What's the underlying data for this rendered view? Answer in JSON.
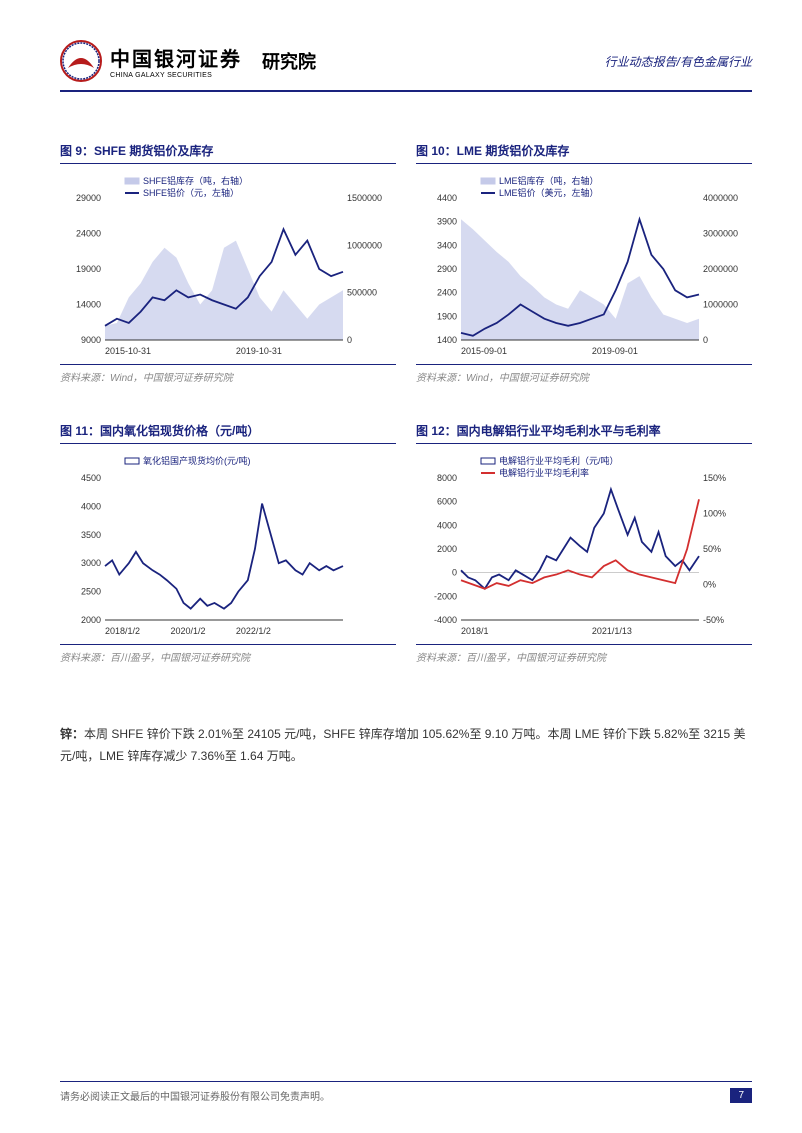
{
  "header": {
    "company_cn": "中国银河证券",
    "company_en": "CHINA GALAXY SECURITIES",
    "division": "研究院",
    "right_text": "行业动态报告/有色金属行业"
  },
  "charts": {
    "c9": {
      "title": "图 9：SHFE 期货铝价及库存",
      "legend1": "SHFE铝库存（吨，右轴）",
      "legend2": "SHFE铝价（元，左轴）",
      "y1_ticks": [
        "9000",
        "14000",
        "19000",
        "24000",
        "29000"
      ],
      "y2_ticks": [
        "0",
        "500000",
        "1000000",
        "1500000"
      ],
      "x_ticks": [
        "2015-10-31",
        "2019-10-31"
      ],
      "source": "资料来源：Wind，中国银河证券研究院",
      "area_color": "#c5cae9",
      "line_color": "#1a237e",
      "area": [
        [
          0,
          0.1
        ],
        [
          0.05,
          0.12
        ],
        [
          0.1,
          0.3
        ],
        [
          0.15,
          0.4
        ],
        [
          0.2,
          0.55
        ],
        [
          0.25,
          0.65
        ],
        [
          0.3,
          0.58
        ],
        [
          0.35,
          0.4
        ],
        [
          0.4,
          0.25
        ],
        [
          0.45,
          0.35
        ],
        [
          0.5,
          0.65
        ],
        [
          0.55,
          0.7
        ],
        [
          0.6,
          0.5
        ],
        [
          0.65,
          0.3
        ],
        [
          0.7,
          0.2
        ],
        [
          0.75,
          0.35
        ],
        [
          0.8,
          0.25
        ],
        [
          0.85,
          0.15
        ],
        [
          0.9,
          0.25
        ],
        [
          0.95,
          0.3
        ],
        [
          1,
          0.35
        ]
      ],
      "line": [
        [
          0,
          0.1
        ],
        [
          0.05,
          0.15
        ],
        [
          0.1,
          0.12
        ],
        [
          0.15,
          0.2
        ],
        [
          0.2,
          0.3
        ],
        [
          0.25,
          0.28
        ],
        [
          0.3,
          0.35
        ],
        [
          0.35,
          0.3
        ],
        [
          0.4,
          0.32
        ],
        [
          0.45,
          0.28
        ],
        [
          0.5,
          0.25
        ],
        [
          0.55,
          0.22
        ],
        [
          0.6,
          0.3
        ],
        [
          0.65,
          0.45
        ],
        [
          0.7,
          0.55
        ],
        [
          0.75,
          0.78
        ],
        [
          0.8,
          0.6
        ],
        [
          0.85,
          0.7
        ],
        [
          0.9,
          0.5
        ],
        [
          0.95,
          0.45
        ],
        [
          1,
          0.48
        ]
      ]
    },
    "c10": {
      "title": "图 10：LME 期货铝价及库存",
      "legend1": "LME铝库存（吨，右轴）",
      "legend2": "LME铝价（美元，左轴）",
      "y1_ticks": [
        "1400",
        "1900",
        "2400",
        "2900",
        "3400",
        "3900",
        "4400"
      ],
      "y2_ticks": [
        "0",
        "1000000",
        "2000000",
        "3000000",
        "4000000"
      ],
      "x_ticks": [
        "2015-09-01",
        "2019-09-01"
      ],
      "source": "资料来源：Wind，中国银河证券研究院",
      "area_color": "#c5cae9",
      "line_color": "#1a237e",
      "area": [
        [
          0,
          0.85
        ],
        [
          0.05,
          0.78
        ],
        [
          0.1,
          0.7
        ],
        [
          0.15,
          0.62
        ],
        [
          0.2,
          0.55
        ],
        [
          0.25,
          0.45
        ],
        [
          0.3,
          0.38
        ],
        [
          0.35,
          0.3
        ],
        [
          0.4,
          0.25
        ],
        [
          0.45,
          0.22
        ],
        [
          0.5,
          0.35
        ],
        [
          0.55,
          0.3
        ],
        [
          0.6,
          0.25
        ],
        [
          0.65,
          0.15
        ],
        [
          0.7,
          0.4
        ],
        [
          0.75,
          0.45
        ],
        [
          0.8,
          0.3
        ],
        [
          0.85,
          0.18
        ],
        [
          0.9,
          0.15
        ],
        [
          0.95,
          0.12
        ],
        [
          1,
          0.15
        ]
      ],
      "line": [
        [
          0,
          0.05
        ],
        [
          0.05,
          0.03
        ],
        [
          0.1,
          0.08
        ],
        [
          0.15,
          0.12
        ],
        [
          0.2,
          0.18
        ],
        [
          0.25,
          0.25
        ],
        [
          0.3,
          0.2
        ],
        [
          0.35,
          0.15
        ],
        [
          0.4,
          0.12
        ],
        [
          0.45,
          0.1
        ],
        [
          0.5,
          0.12
        ],
        [
          0.55,
          0.15
        ],
        [
          0.6,
          0.18
        ],
        [
          0.65,
          0.35
        ],
        [
          0.7,
          0.55
        ],
        [
          0.75,
          0.85
        ],
        [
          0.8,
          0.6
        ],
        [
          0.85,
          0.5
        ],
        [
          0.9,
          0.35
        ],
        [
          0.95,
          0.3
        ],
        [
          1,
          0.32
        ]
      ]
    },
    "c11": {
      "title": "图 11：国内氧化铝现货价格（元/吨）",
      "legend1": "氧化铝国产现货均价(元/吨)",
      "y1_ticks": [
        "2000",
        "2500",
        "3000",
        "3500",
        "4000",
        "4500"
      ],
      "x_ticks": [
        "2018/1/2",
        "2020/1/2",
        "2022/1/2"
      ],
      "source": "资料来源：百川盈孚，中国银河证券研究院",
      "line_color": "#1a237e",
      "line": [
        [
          0,
          0.38
        ],
        [
          0.03,
          0.42
        ],
        [
          0.06,
          0.32
        ],
        [
          0.1,
          0.4
        ],
        [
          0.13,
          0.48
        ],
        [
          0.16,
          0.4
        ],
        [
          0.2,
          0.35
        ],
        [
          0.23,
          0.32
        ],
        [
          0.26,
          0.28
        ],
        [
          0.3,
          0.22
        ],
        [
          0.33,
          0.12
        ],
        [
          0.36,
          0.08
        ],
        [
          0.4,
          0.15
        ],
        [
          0.43,
          0.1
        ],
        [
          0.46,
          0.12
        ],
        [
          0.5,
          0.08
        ],
        [
          0.53,
          0.12
        ],
        [
          0.56,
          0.2
        ],
        [
          0.6,
          0.28
        ],
        [
          0.63,
          0.5
        ],
        [
          0.66,
          0.82
        ],
        [
          0.7,
          0.58
        ],
        [
          0.73,
          0.4
        ],
        [
          0.76,
          0.42
        ],
        [
          0.8,
          0.35
        ],
        [
          0.83,
          0.32
        ],
        [
          0.86,
          0.4
        ],
        [
          0.9,
          0.35
        ],
        [
          0.93,
          0.38
        ],
        [
          0.96,
          0.35
        ],
        [
          1,
          0.38
        ]
      ]
    },
    "c12": {
      "title": "图 12：国内电解铝行业平均毛利水平与毛利率",
      "legend1": "电解铝行业平均毛利（元/吨）",
      "legend2": "电解铝行业平均毛利率",
      "y1_ticks": [
        "-4000",
        "-2000",
        "0",
        "2000",
        "4000",
        "6000",
        "8000"
      ],
      "y2_ticks": [
        "-50%",
        "0%",
        "50%",
        "100%",
        "150%"
      ],
      "x_ticks": [
        "2018/1",
        "2021/1/13"
      ],
      "source": "资料来源：百川盈孚，中国银河证券研究院",
      "line1_color": "#1a237e",
      "line2_color": "#d32f2f",
      "line1": [
        [
          0,
          0.35
        ],
        [
          0.03,
          0.3
        ],
        [
          0.06,
          0.28
        ],
        [
          0.1,
          0.22
        ],
        [
          0.13,
          0.3
        ],
        [
          0.16,
          0.32
        ],
        [
          0.2,
          0.28
        ],
        [
          0.23,
          0.35
        ],
        [
          0.26,
          0.32
        ],
        [
          0.3,
          0.28
        ],
        [
          0.33,
          0.35
        ],
        [
          0.36,
          0.45
        ],
        [
          0.4,
          0.42
        ],
        [
          0.43,
          0.5
        ],
        [
          0.46,
          0.58
        ],
        [
          0.5,
          0.52
        ],
        [
          0.53,
          0.48
        ],
        [
          0.56,
          0.65
        ],
        [
          0.6,
          0.75
        ],
        [
          0.63,
          0.92
        ],
        [
          0.66,
          0.78
        ],
        [
          0.7,
          0.6
        ],
        [
          0.73,
          0.72
        ],
        [
          0.76,
          0.55
        ],
        [
          0.8,
          0.48
        ],
        [
          0.83,
          0.62
        ],
        [
          0.86,
          0.45
        ],
        [
          0.9,
          0.38
        ],
        [
          0.93,
          0.42
        ],
        [
          0.96,
          0.35
        ],
        [
          1,
          0.45
        ]
      ],
      "line2": [
        [
          0,
          0.28
        ],
        [
          0.05,
          0.25
        ],
        [
          0.1,
          0.22
        ],
        [
          0.15,
          0.26
        ],
        [
          0.2,
          0.24
        ],
        [
          0.25,
          0.28
        ],
        [
          0.3,
          0.26
        ],
        [
          0.35,
          0.3
        ],
        [
          0.4,
          0.32
        ],
        [
          0.45,
          0.35
        ],
        [
          0.5,
          0.32
        ],
        [
          0.55,
          0.3
        ],
        [
          0.6,
          0.38
        ],
        [
          0.65,
          0.42
        ],
        [
          0.7,
          0.35
        ],
        [
          0.75,
          0.32
        ],
        [
          0.8,
          0.3
        ],
        [
          0.85,
          0.28
        ],
        [
          0.9,
          0.26
        ],
        [
          0.95,
          0.5
        ],
        [
          1,
          0.85
        ]
      ]
    }
  },
  "body": {
    "label": "锌：",
    "text": "本周 SHFE 锌价下跌 2.01%至 24105 元/吨，SHFE 锌库存增加 105.62%至 9.10 万吨。本周 LME 锌价下跌 5.82%至 3215 美元/吨，LME 锌库存减少 7.36%至 1.64 万吨。"
  },
  "footer": {
    "text": "请务必阅读正文最后的中国银河证券股份有限公司免责声明。",
    "page": "7"
  }
}
